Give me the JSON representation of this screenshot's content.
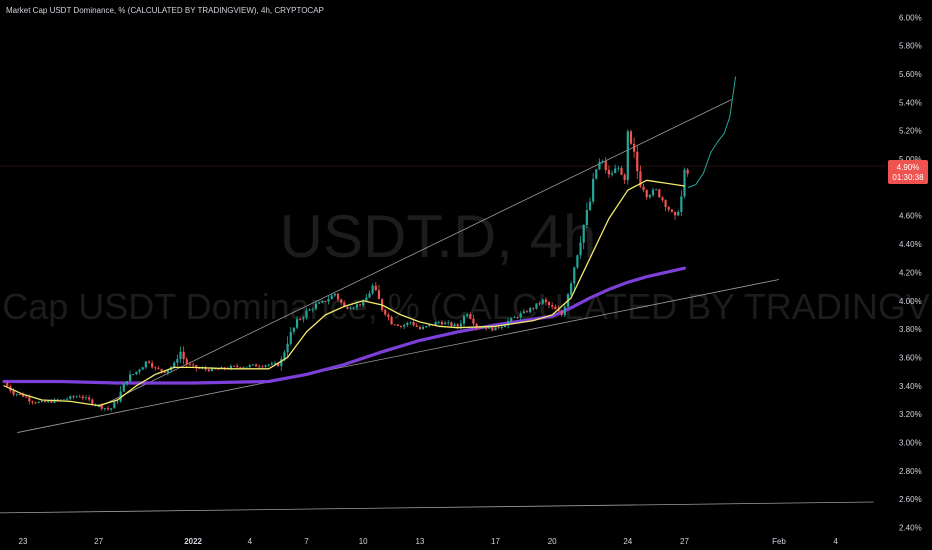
{
  "chart_data": {
    "type": "candlestick",
    "title": "Market Cap USDT Dominance, % (CALCULATED BY TRADINGVIEW), 4h, CRYPTOCAP",
    "watermark": {
      "ticker": "USDT.D, 4h",
      "name": "Market Cap USDT Dominance, % (CALCULATED BY TRADINGVIEW)"
    },
    "ylim": [
      2.34,
      6.08
    ],
    "y_ticks": [
      {
        "value": 2.4,
        "label": "2.40%"
      },
      {
        "value": 2.6,
        "label": "2.60%"
      },
      {
        "value": 2.8,
        "label": "2.80%"
      },
      {
        "value": 3.0,
        "label": "3.00%"
      },
      {
        "value": 3.2,
        "label": "3.20%"
      },
      {
        "value": 3.4,
        "label": "3.40%"
      },
      {
        "value": 3.6,
        "label": "3.60%"
      },
      {
        "value": 3.8,
        "label": "3.80%"
      },
      {
        "value": 4.0,
        "label": "4.00%"
      },
      {
        "value": 4.2,
        "label": "4.20%"
      },
      {
        "value": 4.4,
        "label": "4.40%"
      },
      {
        "value": 4.6,
        "label": "4.60%"
      },
      {
        "value": 5.0,
        "label": "5.00%"
      },
      {
        "value": 5.2,
        "label": "5.20%"
      },
      {
        "value": 5.4,
        "label": "5.40%"
      },
      {
        "value": 5.6,
        "label": "5.60%"
      },
      {
        "value": 5.8,
        "label": "5.80%"
      },
      {
        "value": 6.0,
        "label": "6.00%"
      }
    ],
    "x_ticks": [
      {
        "day": 23,
        "label": "23",
        "bold": false
      },
      {
        "day": 27,
        "label": "27",
        "bold": false
      },
      {
        "day": 32,
        "label": "2022",
        "bold": true
      },
      {
        "day": 35,
        "label": "4",
        "bold": false
      },
      {
        "day": 38,
        "label": "7",
        "bold": false
      },
      {
        "day": 41,
        "label": "10",
        "bold": false
      },
      {
        "day": 44,
        "label": "13",
        "bold": false
      },
      {
        "day": 48,
        "label": "17",
        "bold": false
      },
      {
        "day": 51,
        "label": "20",
        "bold": false
      },
      {
        "day": 55,
        "label": "24",
        "bold": false
      },
      {
        "day": 58,
        "label": "27",
        "bold": false
      },
      {
        "day": 63,
        "label": "Feb",
        "bold": false
      },
      {
        "day": 66,
        "label": "4",
        "bold": false
      }
    ],
    "current_price": {
      "value": 4.9,
      "label": "4.90%",
      "countdown": "01:30:38"
    },
    "colors": {
      "up": "#26a69a",
      "down": "#ef5350",
      "ema_fast": "#f3e96b",
      "ema_slow": "#7e3fd9",
      "projection": "#26a69a",
      "trendline": "#9e9e9e"
    },
    "anchors": [
      {
        "day": 22.0,
        "close": 3.42
      },
      {
        "day": 22.5,
        "close": 3.35
      },
      {
        "day": 23.0,
        "close": 3.33
      },
      {
        "day": 23.5,
        "close": 3.29
      },
      {
        "day": 24.0,
        "close": 3.28
      },
      {
        "day": 25.0,
        "close": 3.3
      },
      {
        "day": 26.0,
        "close": 3.33
      },
      {
        "day": 27.0,
        "close": 3.26
      },
      {
        "day": 27.6,
        "close": 3.23
      },
      {
        "day": 28.0,
        "close": 3.3
      },
      {
        "day": 28.5,
        "close": 3.45
      },
      {
        "day": 29.0,
        "close": 3.5
      },
      {
        "day": 29.6,
        "close": 3.58
      },
      {
        "day": 30.0,
        "close": 3.52
      },
      {
        "day": 30.5,
        "close": 3.5
      },
      {
        "day": 31.0,
        "close": 3.55
      },
      {
        "day": 31.3,
        "close": 3.65
      },
      {
        "day": 31.6,
        "close": 3.56
      },
      {
        "day": 32.0,
        "close": 3.53
      },
      {
        "day": 33.0,
        "close": 3.51
      },
      {
        "day": 34.0,
        "close": 3.53
      },
      {
        "day": 35.0,
        "close": 3.54
      },
      {
        "day": 36.0,
        "close": 3.55
      },
      {
        "day": 36.6,
        "close": 3.55
      },
      {
        "day": 37.0,
        "close": 3.72
      },
      {
        "day": 37.5,
        "close": 3.85
      },
      {
        "day": 38.0,
        "close": 3.92
      },
      {
        "day": 38.5,
        "close": 3.97
      },
      {
        "day": 39.0,
        "close": 4.0
      },
      {
        "day": 39.5,
        "close": 4.05
      },
      {
        "day": 40.0,
        "close": 3.95
      },
      {
        "day": 41.0,
        "close": 3.98
      },
      {
        "day": 41.5,
        "close": 4.1
      },
      {
        "day": 42.0,
        "close": 3.95
      },
      {
        "day": 42.5,
        "close": 3.85
      },
      {
        "day": 43.0,
        "close": 3.82
      },
      {
        "day": 43.5,
        "close": 3.85
      },
      {
        "day": 44.0,
        "close": 3.8
      },
      {
        "day": 45.0,
        "close": 3.85
      },
      {
        "day": 46.0,
        "close": 3.82
      },
      {
        "day": 46.5,
        "close": 3.92
      },
      {
        "day": 47.0,
        "close": 3.82
      },
      {
        "day": 48.0,
        "close": 3.8
      },
      {
        "day": 49.0,
        "close": 3.88
      },
      {
        "day": 50.0,
        "close": 3.95
      },
      {
        "day": 50.5,
        "close": 4.0
      },
      {
        "day": 51.0,
        "close": 3.95
      },
      {
        "day": 51.5,
        "close": 3.9
      },
      {
        "day": 52.0,
        "close": 4.15
      },
      {
        "day": 52.5,
        "close": 4.45
      },
      {
        "day": 53.0,
        "close": 4.7
      },
      {
        "day": 53.3,
        "close": 4.92
      },
      {
        "day": 53.6,
        "close": 5.0
      },
      {
        "day": 54.0,
        "close": 4.88
      },
      {
        "day": 54.5,
        "close": 4.95
      },
      {
        "day": 54.8,
        "close": 4.78
      },
      {
        "day": 55.0,
        "close": 5.12
      },
      {
        "day": 55.3,
        "close": 5.05
      },
      {
        "day": 55.6,
        "close": 4.85
      },
      {
        "day": 56.0,
        "close": 4.75
      },
      {
        "day": 56.5,
        "close": 4.78
      },
      {
        "day": 57.0,
        "close": 4.68
      },
      {
        "day": 57.5,
        "close": 4.58
      },
      {
        "day": 57.8,
        "close": 4.7
      },
      {
        "day": 58.0,
        "close": 4.88
      },
      {
        "day": 58.2,
        "close": 4.9
      }
    ],
    "ema_fast": [
      {
        "day": 22.0,
        "value": 3.4
      },
      {
        "day": 23.0,
        "value": 3.34
      },
      {
        "day": 24.0,
        "value": 3.3
      },
      {
        "day": 25.5,
        "value": 3.29
      },
      {
        "day": 27.0,
        "value": 3.26
      },
      {
        "day": 28.0,
        "value": 3.3
      },
      {
        "day": 29.0,
        "value": 3.4
      },
      {
        "day": 30.0,
        "value": 3.48
      },
      {
        "day": 31.0,
        "value": 3.53
      },
      {
        "day": 32.0,
        "value": 3.53
      },
      {
        "day": 34.0,
        "value": 3.52
      },
      {
        "day": 36.0,
        "value": 3.52
      },
      {
        "day": 37.0,
        "value": 3.6
      },
      {
        "day": 38.0,
        "value": 3.78
      },
      {
        "day": 39.0,
        "value": 3.9
      },
      {
        "day": 40.0,
        "value": 3.96
      },
      {
        "day": 41.0,
        "value": 4.0
      },
      {
        "day": 42.0,
        "value": 3.97
      },
      {
        "day": 43.0,
        "value": 3.9
      },
      {
        "day": 44.0,
        "value": 3.85
      },
      {
        "day": 45.0,
        "value": 3.82
      },
      {
        "day": 46.0,
        "value": 3.81
      },
      {
        "day": 48.0,
        "value": 3.82
      },
      {
        "day": 50.0,
        "value": 3.86
      },
      {
        "day": 51.0,
        "value": 3.9
      },
      {
        "day": 52.0,
        "value": 4.02
      },
      {
        "day": 53.0,
        "value": 4.3
      },
      {
        "day": 54.0,
        "value": 4.58
      },
      {
        "day": 55.0,
        "value": 4.78
      },
      {
        "day": 56.0,
        "value": 4.85
      },
      {
        "day": 57.0,
        "value": 4.83
      },
      {
        "day": 58.0,
        "value": 4.81
      }
    ],
    "ema_slow": [
      {
        "day": 22.0,
        "value": 3.43
      },
      {
        "day": 25.0,
        "value": 3.43
      },
      {
        "day": 28.0,
        "value": 3.42
      },
      {
        "day": 32.0,
        "value": 3.42
      },
      {
        "day": 36.0,
        "value": 3.43
      },
      {
        "day": 38.0,
        "value": 3.48
      },
      {
        "day": 40.0,
        "value": 3.55
      },
      {
        "day": 42.0,
        "value": 3.64
      },
      {
        "day": 44.0,
        "value": 3.72
      },
      {
        "day": 46.0,
        "value": 3.78
      },
      {
        "day": 48.0,
        "value": 3.83
      },
      {
        "day": 50.0,
        "value": 3.87
      },
      {
        "day": 51.0,
        "value": 3.89
      },
      {
        "day": 52.0,
        "value": 3.95
      },
      {
        "day": 53.0,
        "value": 4.02
      },
      {
        "day": 54.0,
        "value": 4.08
      },
      {
        "day": 55.0,
        "value": 4.13
      },
      {
        "day": 56.0,
        "value": 4.17
      },
      {
        "day": 57.0,
        "value": 4.2
      },
      {
        "day": 58.0,
        "value": 4.23
      }
    ],
    "projection": [
      {
        "day": 58.2,
        "value": 4.8
      },
      {
        "day": 58.6,
        "value": 4.82
      },
      {
        "day": 59.0,
        "value": 4.9
      },
      {
        "day": 59.4,
        "value": 5.05
      },
      {
        "day": 59.8,
        "value": 5.13
      },
      {
        "day": 60.1,
        "value": 5.18
      },
      {
        "day": 60.4,
        "value": 5.3
      },
      {
        "day": 60.7,
        "value": 5.58
      }
    ],
    "trendlines": [
      {
        "from": {
          "day": 27.0,
          "value": 3.25
        },
        "to": {
          "day": 60.5,
          "value": 5.42
        }
      },
      {
        "from": {
          "day": 22.7,
          "value": 3.07
        },
        "to": {
          "day": 63.0,
          "value": 4.15
        }
      },
      {
        "from": {
          "day": 20.0,
          "value": 2.5
        },
        "to": {
          "day": 68.0,
          "value": 2.58
        }
      }
    ]
  }
}
